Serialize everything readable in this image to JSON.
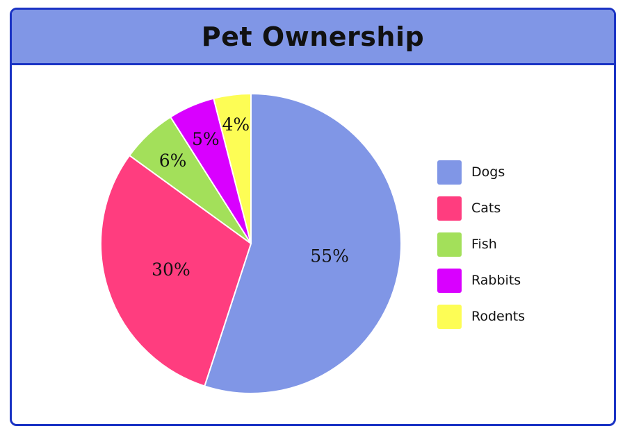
{
  "chart_data": {
    "type": "pie",
    "title": "Pet Ownership",
    "categories": [
      "Dogs",
      "Cats",
      "Fish",
      "Rabbits",
      "Rodents"
    ],
    "values": [
      55,
      30,
      6,
      5,
      4
    ],
    "labels": [
      "55%",
      "30%",
      "6%",
      "5%",
      "4%"
    ],
    "colors": [
      "#8096e6",
      "#ff3d7f",
      "#a3e05a",
      "#d900ff",
      "#fdfd55"
    ],
    "legend_position": "right",
    "start_angle": "top",
    "direction": "clockwise"
  }
}
